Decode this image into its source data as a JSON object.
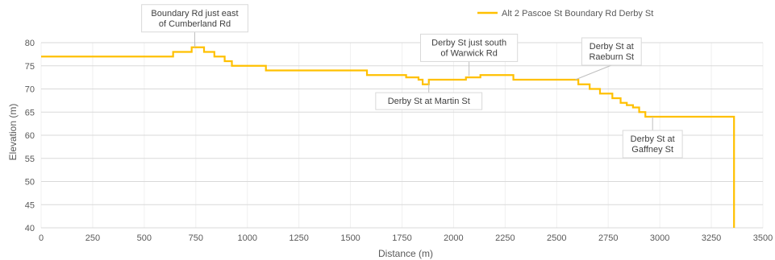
{
  "chart_data": {
    "type": "line",
    "title": "",
    "xlabel": "Distance (m)",
    "ylabel": "Elevation (m)",
    "xlim": [
      0,
      3500
    ],
    "ylim": [
      40,
      80
    ],
    "xticks": [
      0,
      250,
      500,
      750,
      1000,
      1250,
      1500,
      1750,
      2000,
      2250,
      2500,
      2750,
      3000,
      3250,
      3500
    ],
    "yticks": [
      40,
      45,
      50,
      55,
      60,
      65,
      70,
      75,
      80
    ],
    "grid": true,
    "legend_position": "top-right",
    "series": [
      {
        "name": "Alt 2 Pascoe St Boundary Rd Derby St",
        "color": "#FFC000",
        "step": true,
        "x": [
          0,
          640,
          730,
          790,
          840,
          890,
          925,
          1090,
          1580,
          1770,
          1830,
          1850,
          1880,
          1905,
          2060,
          2130,
          2290,
          2605,
          2660,
          2710,
          2770,
          2810,
          2840,
          2870,
          2900,
          2930,
          2965,
          3355,
          3360
        ],
        "y": [
          77,
          78,
          79,
          78,
          77,
          76,
          75,
          74,
          73,
          72.5,
          72,
          71,
          72,
          72,
          72.5,
          73,
          72,
          71,
          70,
          69,
          68,
          67,
          66.5,
          66,
          65,
          64,
          64,
          64,
          40
        ]
      }
    ],
    "annotations": [
      {
        "lines": [
          "Boundary Rd just east",
          "of Cumberland Rd"
        ],
        "x": 745,
        "y": 79
      },
      {
        "lines": [
          "Derby St just south",
          "of Warwick Rd"
        ],
        "x": 2075,
        "y": 72.8
      },
      {
        "lines": [
          "Derby St at",
          "Raeburn St"
        ],
        "x": 2590,
        "y": 72
      },
      {
        "lines": [
          "Derby St at Martin St"
        ],
        "x": 1880,
        "y": 71.2
      },
      {
        "lines": [
          "Derby St at",
          "Gaffney St"
        ],
        "x": 2965,
        "y": 64
      }
    ]
  }
}
